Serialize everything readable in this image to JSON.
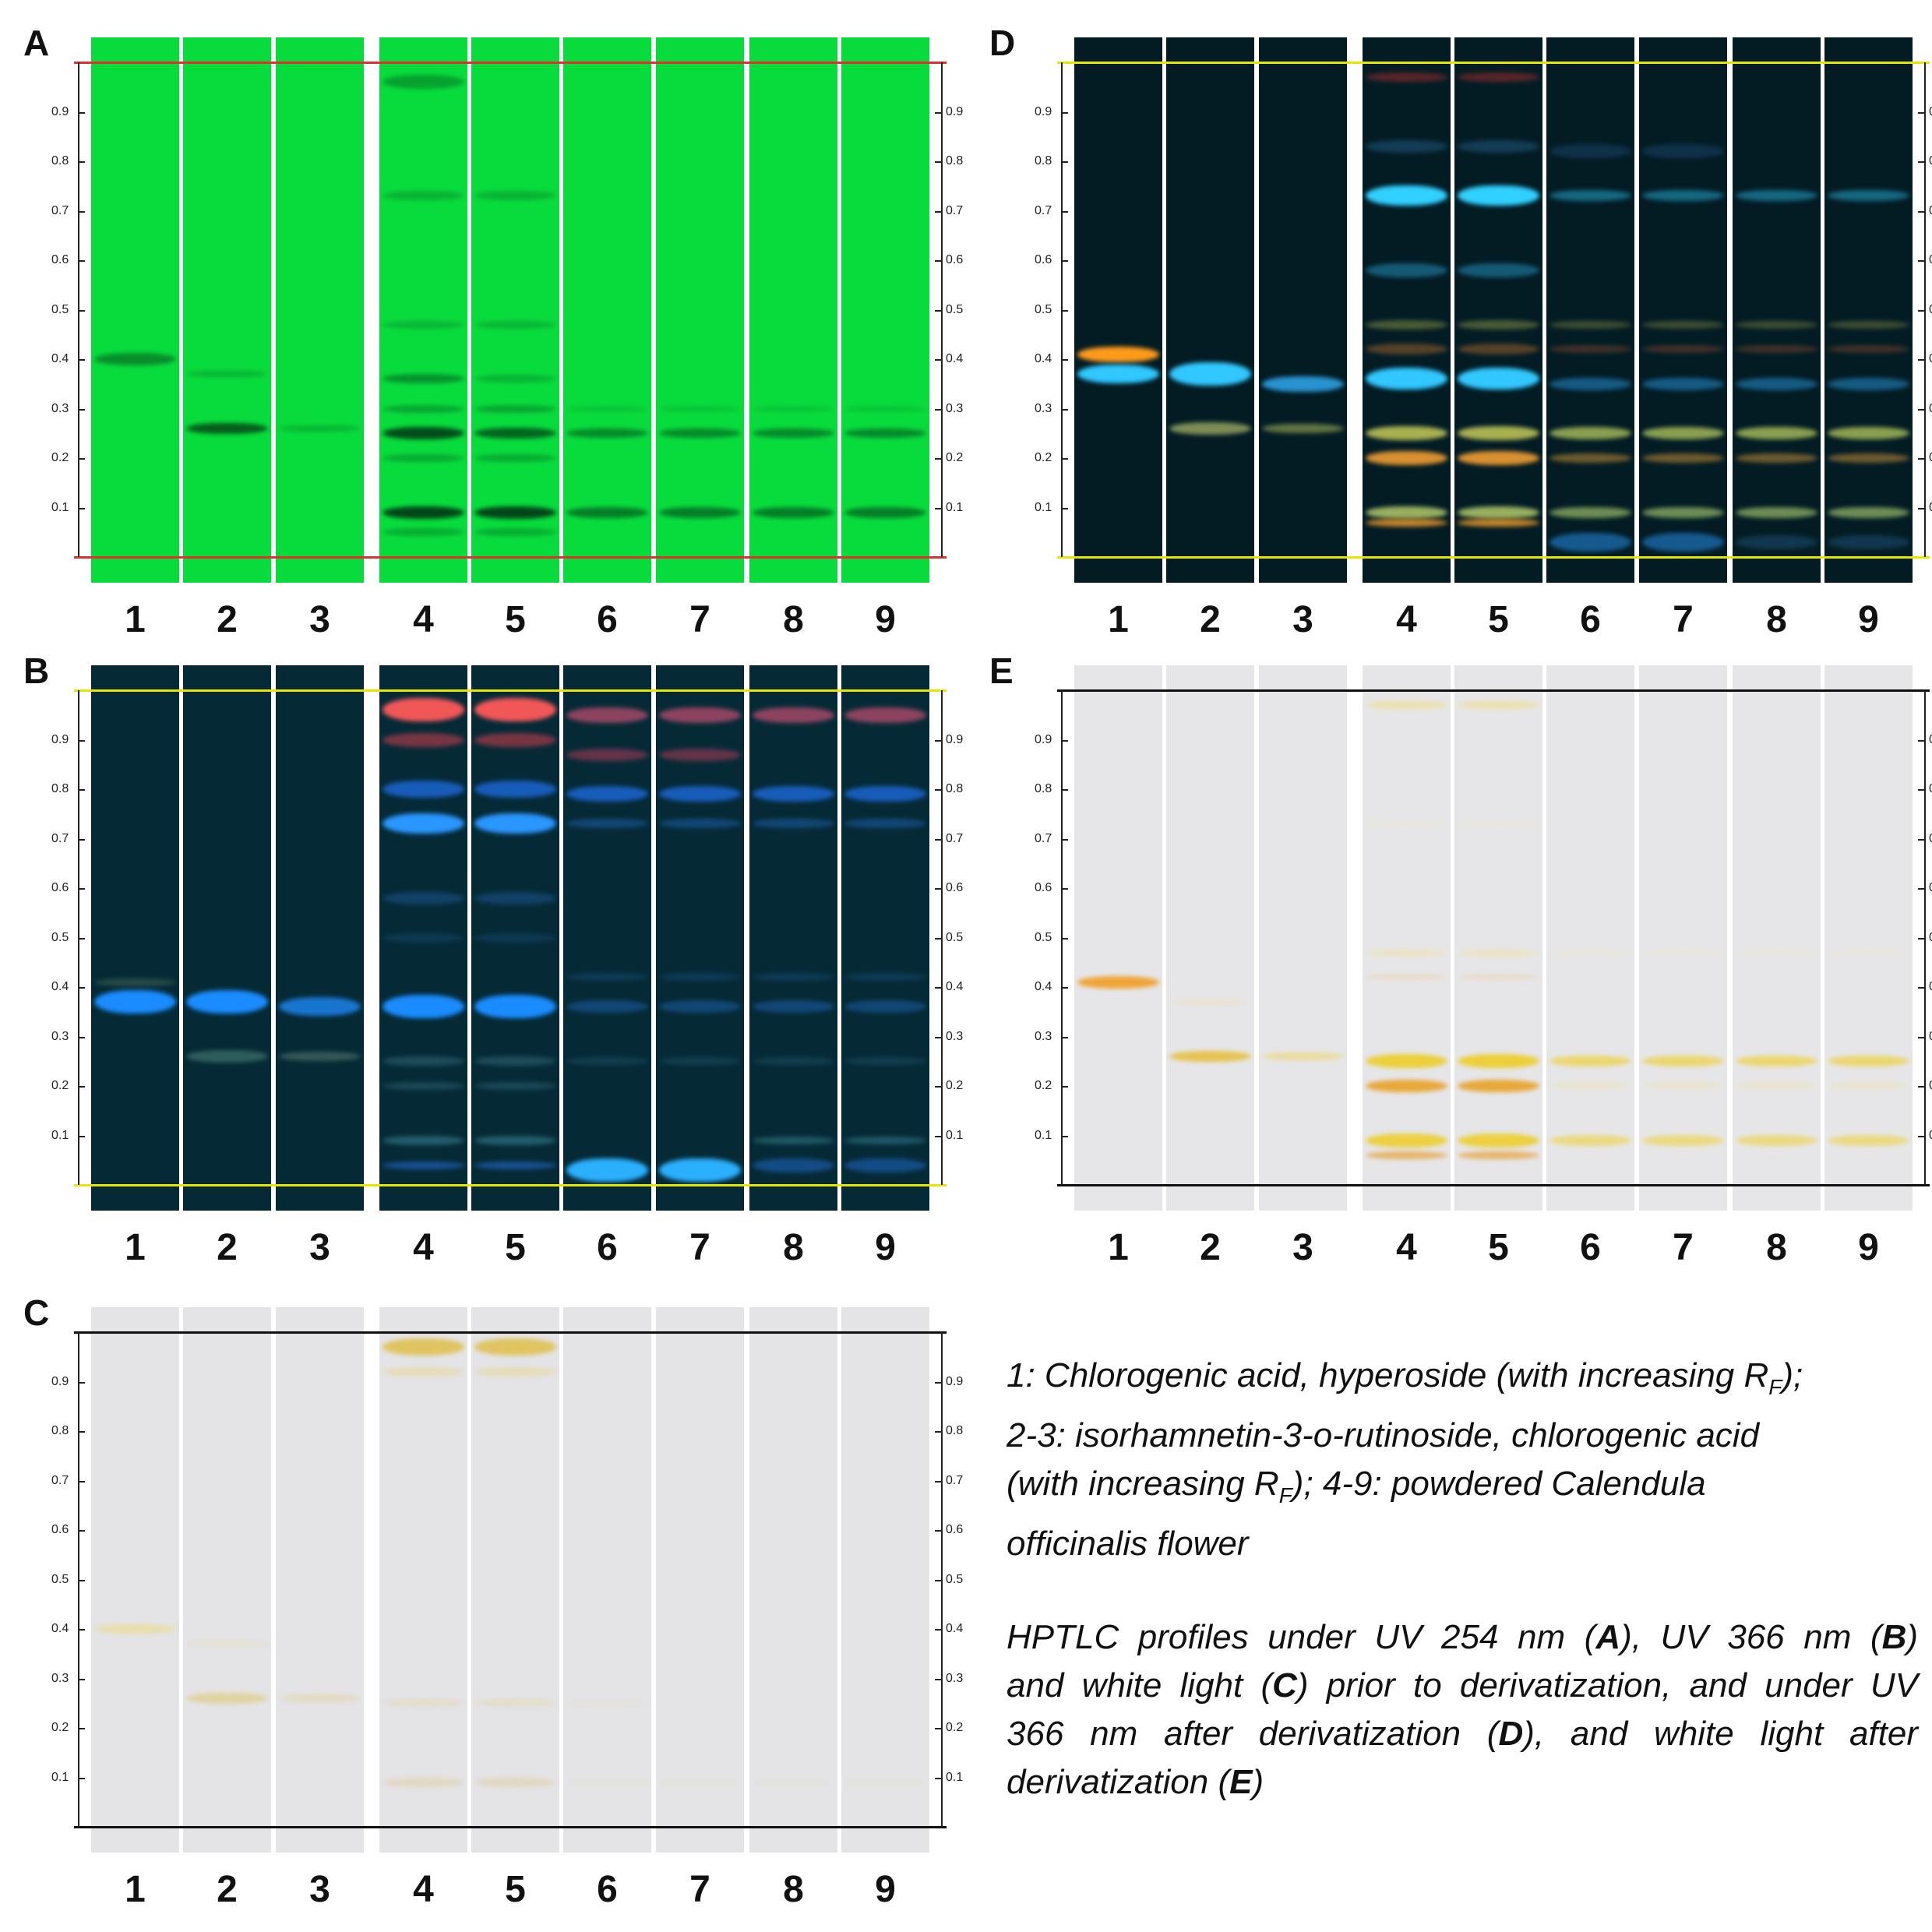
{
  "panels": [
    {
      "id": "A",
      "letter": "A",
      "mode": "uv254",
      "bg": "#08dc3c",
      "line_color": "#e03030"
    },
    {
      "id": "B",
      "letter": "B",
      "mode": "uv366",
      "bg": "#052a36",
      "line_color": "#e6e600"
    },
    {
      "id": "C",
      "letter": "C",
      "mode": "white",
      "bg": "#e4e3e6",
      "line_color": "#111111"
    },
    {
      "id": "D",
      "letter": "D",
      "mode": "uv366d",
      "bg": "#031c24",
      "line_color": "#e6e600"
    },
    {
      "id": "E",
      "letter": "E",
      "mode": "whited",
      "bg": "#e6e6e8",
      "line_color": "#111111"
    }
  ],
  "lane_labels": [
    "1",
    "2",
    "3",
    "4",
    "5",
    "6",
    "7",
    "8",
    "9"
  ],
  "rf_ticks": [
    "0.1",
    "0.2",
    "0.3",
    "0.4",
    "0.5",
    "0.6",
    "0.7",
    "0.8",
    "0.9"
  ],
  "caption": {
    "line1_a": "1: Chlorogenic acid, hyperoside (with increasing R",
    "line1_sub": "F",
    "line1_b": ");",
    "line2": "2-3: isorhamnetin-3-o-rutinoside, chlorogenic acid",
    "line3_a": "(with increasing R",
    "line3_sub": "F",
    "line3_b": "); 4-9: powdered Calendula",
    "line4": "officinalis flower",
    "p2_1": "HPTLC profiles under UV 254 nm (",
    "p2_A": "A",
    "p2_2": "), UV 366 nm (",
    "p2_B": "B",
    "p2_3": ")",
    "p2_4": "and white light (",
    "p2_C": "C",
    "p2_5": ") prior to derivatization, and under UV",
    "p2_6": "366 nm after derivatization (",
    "p2_D": "D",
    "p2_7": "), and white light after",
    "p2_8": "derivatization (",
    "p2_E": "E",
    "p2_9": ")"
  }
}
